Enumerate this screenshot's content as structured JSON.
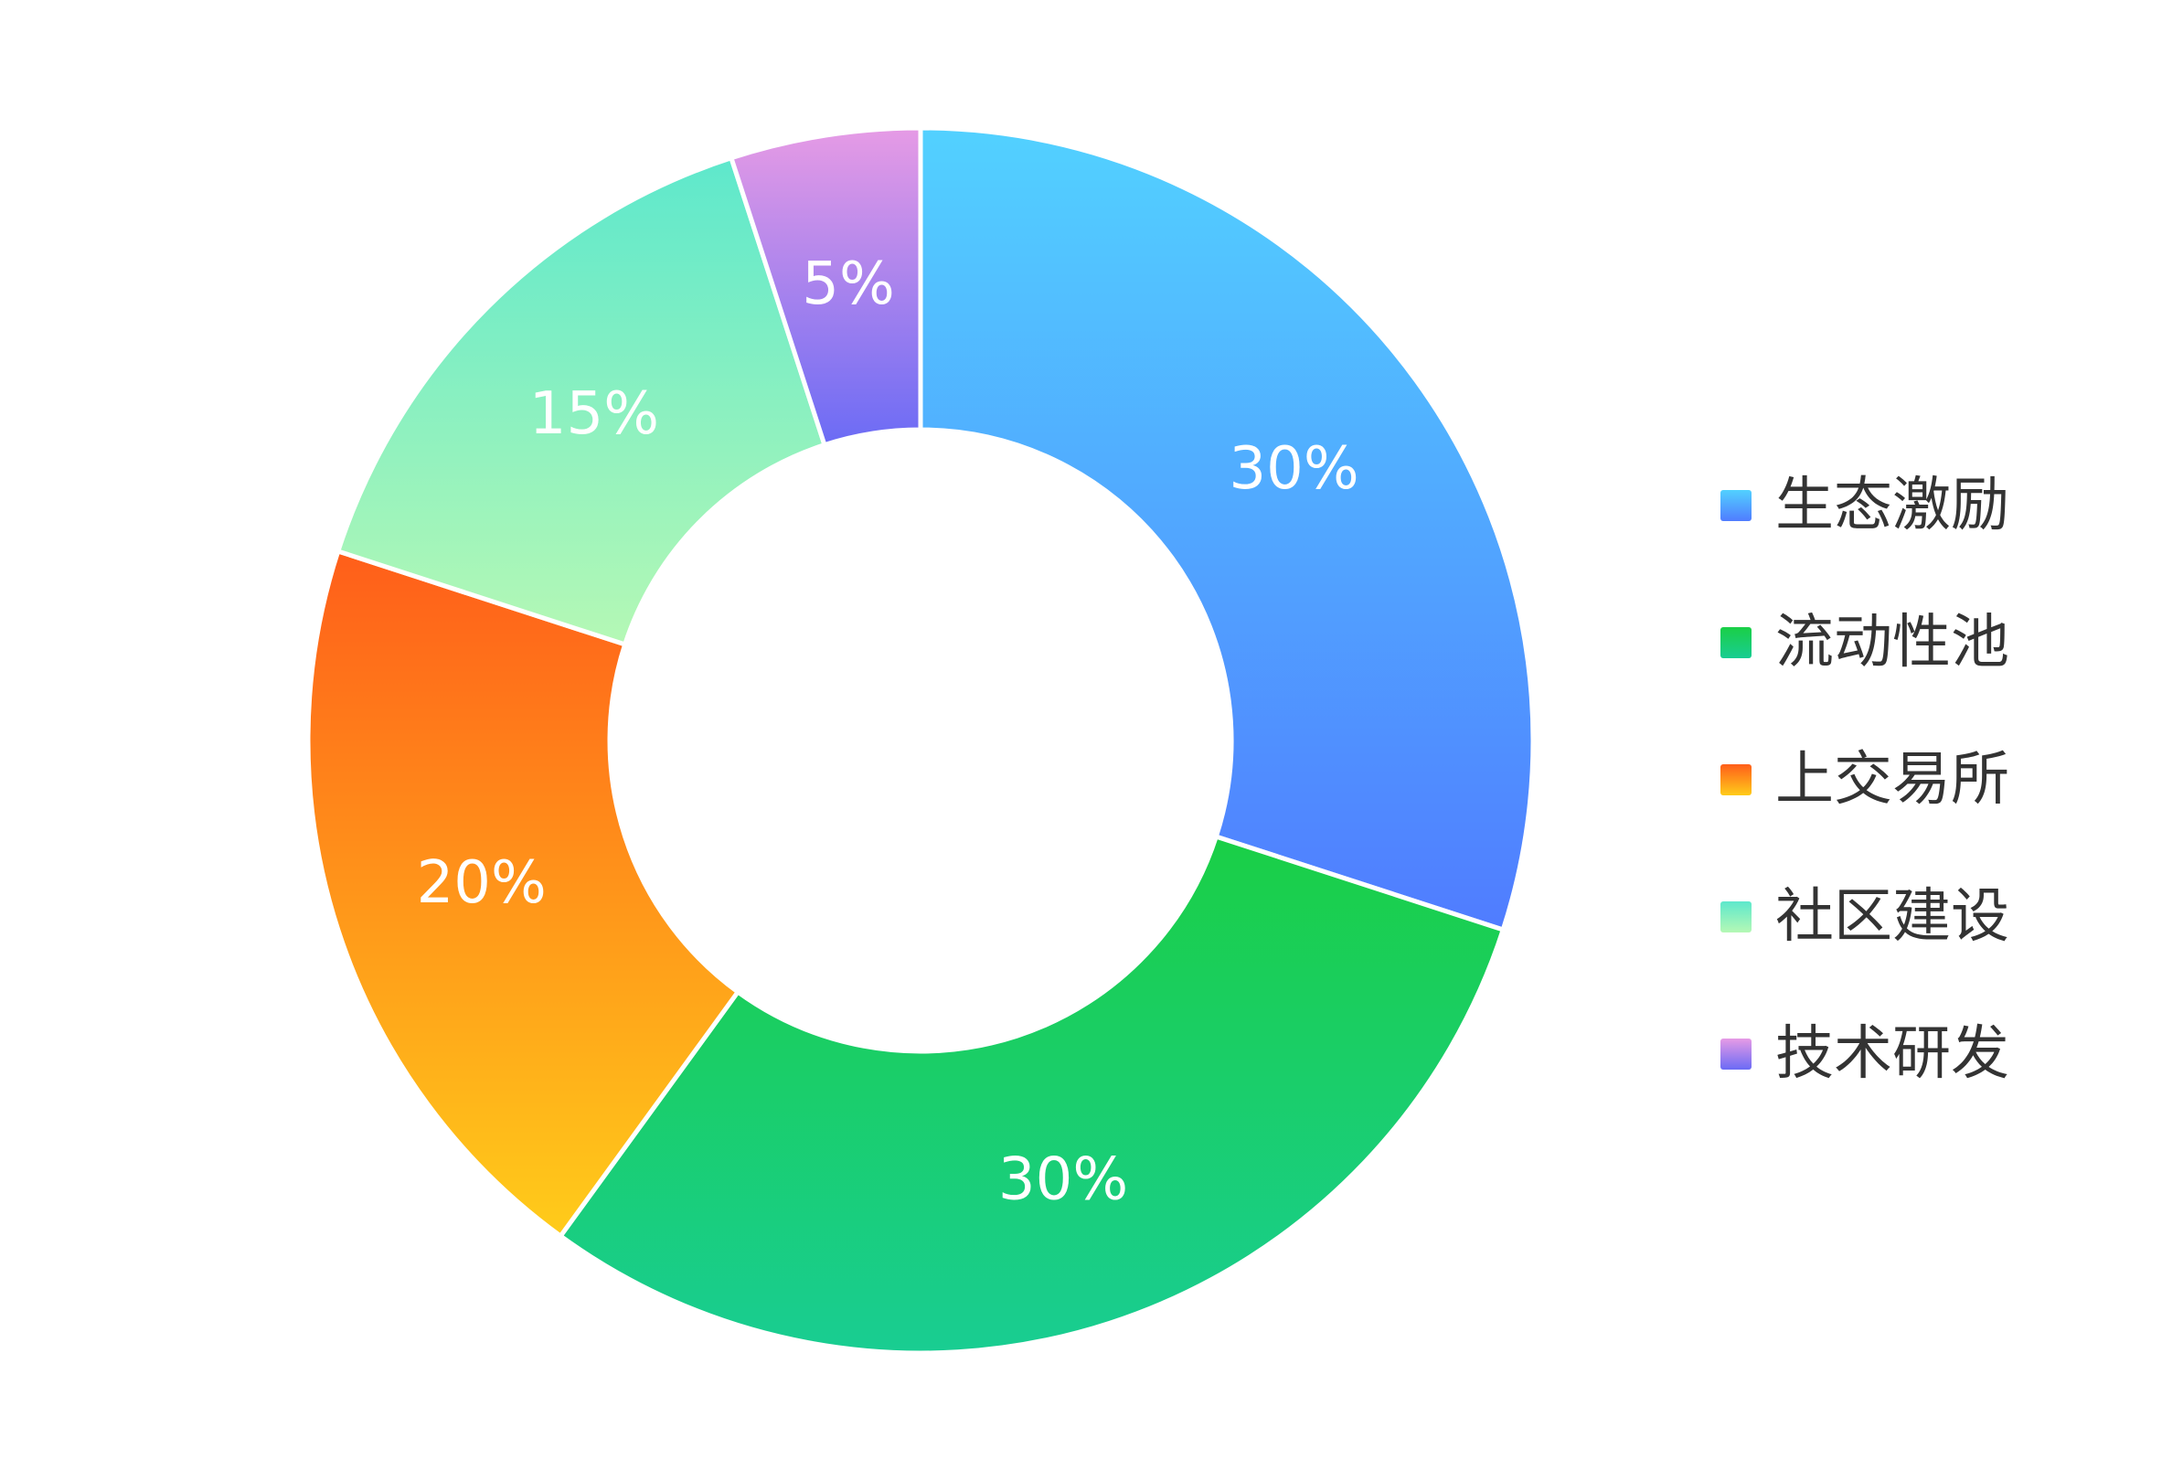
{
  "chart_data": {
    "type": "pie",
    "variant": "donut",
    "title": "",
    "legend_position": "right",
    "slices": [
      {
        "name": "生态激励",
        "value": 30,
        "label": "30%",
        "color_start": "#52D1FF",
        "color_end": "#507CFF"
      },
      {
        "name": "流动性池",
        "value": 30,
        "label": "30%",
        "color_start": "#1ACF46",
        "color_end": "#19CD92"
      },
      {
        "name": "上交易所",
        "value": 20,
        "label": "20%",
        "color_start": "#FF5E1A",
        "color_end": "#FFCC1A"
      },
      {
        "name": "社区建设",
        "value": 15,
        "label": "15%",
        "color_start": "#5EE8CC",
        "color_end": "#B5F8B5"
      },
      {
        "name": "技术研发",
        "value": 5,
        "label": "5%",
        "color_start": "#E69BE5",
        "color_end": "#6B6BF5"
      }
    ]
  }
}
